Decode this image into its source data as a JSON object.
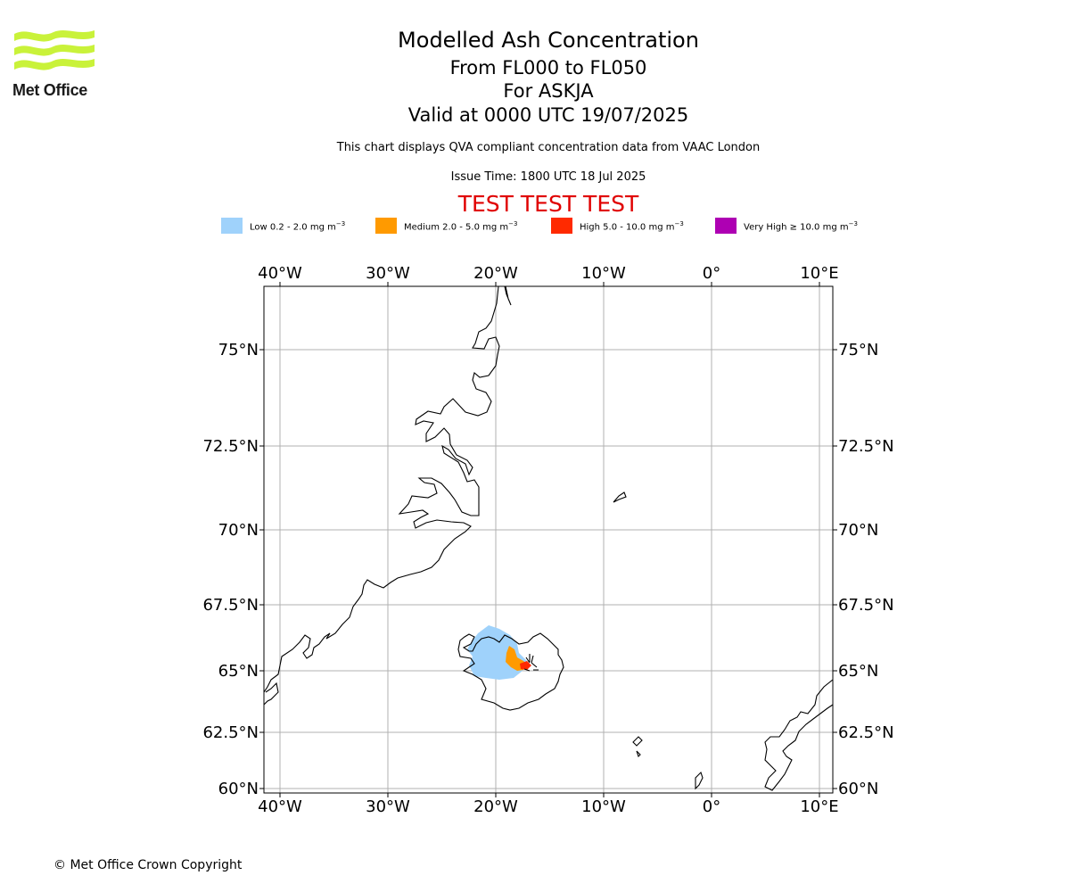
{
  "logo": {
    "name": "Met Office",
    "color": "#c9f23a"
  },
  "header": {
    "title": "Modelled Ash Concentration",
    "levels": "From FL000 to FL050",
    "volcano": "For ASKJA",
    "valid": "Valid at 0000 UTC 19/07/2025",
    "description": "This chart displays QVA compliant concentration data from VAAC London",
    "issue": "Issue Time: 1800 UTC 18 Jul 2025",
    "test_banner": "TEST TEST TEST",
    "test_color": "#e00000"
  },
  "legend": [
    {
      "label": "Low 0.2 - 2.0 mg m",
      "color": "#9fd2fb"
    },
    {
      "label": "Medium 2.0 - 5.0 mg m",
      "color": "#ff9a00"
    },
    {
      "label": "High 5.0 - 10.0 mg m",
      "color": "#ff2a00"
    },
    {
      "label": "Very High ≥ 10.0 mg m",
      "color": "#ae00b3"
    }
  ],
  "legend_unit_exponent": "−3",
  "map": {
    "lon_labels": [
      "40°W",
      "30°W",
      "20°W",
      "10°W",
      "0°",
      "10°E"
    ],
    "lat_labels": [
      "75°N",
      "72.5°N",
      "70°N",
      "67.5°N",
      "65°N",
      "62.5°N",
      "60°N"
    ],
    "gridlines": true
  },
  "footer": {
    "copyright": "© Met Office Crown Copyright"
  }
}
